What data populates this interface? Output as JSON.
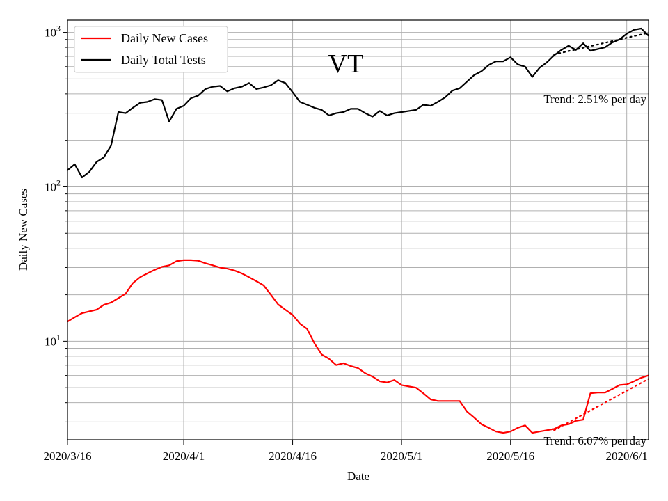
{
  "chart_data": {
    "type": "line",
    "title": "VT",
    "xlabel": "Date",
    "ylabel": "Daily New Cases",
    "yscale": "log",
    "ylim": [
      2.3,
      1200
    ],
    "grid": true,
    "legend_location": "upper-left",
    "x_start": "2020-03-16",
    "x_end": "2020-06-04",
    "x_tick_labels": [
      "2020/3/16",
      "2020/4/1",
      "2020/4/16",
      "2020/5/1",
      "2020/5/16",
      "2020/6/1"
    ],
    "x_tick_dates": [
      "2020-03-16",
      "2020-04-01",
      "2020-04-16",
      "2020-05-01",
      "2020-05-16",
      "2020-06-01"
    ],
    "y_tick_labels": [
      {
        "base": "10",
        "exp": "1",
        "value": 10
      },
      {
        "base": "10",
        "exp": "2",
        "value": 100
      },
      {
        "base": "10",
        "exp": "3",
        "value": 1000
      }
    ],
    "series": [
      {
        "name": "Daily New Cases",
        "color": "#ff0000",
        "dates": [
          "2020-03-16",
          "2020-03-17",
          "2020-03-18",
          "2020-03-19",
          "2020-03-20",
          "2020-03-21",
          "2020-03-22",
          "2020-03-23",
          "2020-03-24",
          "2020-03-25",
          "2020-03-26",
          "2020-03-27",
          "2020-03-28",
          "2020-03-29",
          "2020-03-30",
          "2020-03-31",
          "2020-04-01",
          "2020-04-02",
          "2020-04-03",
          "2020-04-04",
          "2020-04-05",
          "2020-04-06",
          "2020-04-07",
          "2020-04-08",
          "2020-04-09",
          "2020-04-10",
          "2020-04-11",
          "2020-04-12",
          "2020-04-13",
          "2020-04-14",
          "2020-04-15",
          "2020-04-16",
          "2020-04-17",
          "2020-04-18",
          "2020-04-19",
          "2020-04-20",
          "2020-04-21",
          "2020-04-22",
          "2020-04-23",
          "2020-04-24",
          "2020-04-25",
          "2020-04-26",
          "2020-04-27",
          "2020-04-28",
          "2020-04-29",
          "2020-04-30",
          "2020-05-01",
          "2020-05-02",
          "2020-05-03",
          "2020-05-04",
          "2020-05-05",
          "2020-05-06",
          "2020-05-07",
          "2020-05-08",
          "2020-05-09",
          "2020-05-10",
          "2020-05-11",
          "2020-05-12",
          "2020-05-13",
          "2020-05-14",
          "2020-05-15",
          "2020-05-16",
          "2020-05-17",
          "2020-05-18",
          "2020-05-19",
          "2020-05-20",
          "2020-05-21",
          "2020-05-22",
          "2020-05-23",
          "2020-05-24",
          "2020-05-25",
          "2020-05-26",
          "2020-05-27",
          "2020-05-28",
          "2020-05-29",
          "2020-05-30",
          "2020-05-31",
          "2020-06-01",
          "2020-06-02",
          "2020-06-03",
          "2020-06-04"
        ],
        "values": [
          13.4,
          14.3,
          15.2,
          15.6,
          16.0,
          17.2,
          17.8,
          19.0,
          20.3,
          23.8,
          26.0,
          27.5,
          29.0,
          30.3,
          31.0,
          33.0,
          33.5,
          33.5,
          33.2,
          32.0,
          31.0,
          30.0,
          29.5,
          28.7,
          27.5,
          26.0,
          24.5,
          23.0,
          20.0,
          17.3,
          16.0,
          14.8,
          13.0,
          12.0,
          9.7,
          8.2,
          7.7,
          7.0,
          7.2,
          6.9,
          6.7,
          6.2,
          5.9,
          5.5,
          5.4,
          5.6,
          5.2,
          5.1,
          5.0,
          4.6,
          4.2,
          4.1,
          4.1,
          4.1,
          4.1,
          3.5,
          3.2,
          2.9,
          2.75,
          2.6,
          2.55,
          2.6,
          2.75,
          2.85,
          2.55,
          2.6,
          2.65,
          2.7,
          2.85,
          2.9,
          3.05,
          3.1,
          4.6,
          4.65,
          4.65,
          4.9,
          5.2,
          5.25,
          5.5,
          5.8,
          6.0
        ]
      },
      {
        "name": "Daily Total Tests",
        "color": "#000000",
        "dates": [
          "2020-03-16",
          "2020-03-17",
          "2020-03-18",
          "2020-03-19",
          "2020-03-20",
          "2020-03-21",
          "2020-03-22",
          "2020-03-23",
          "2020-03-24",
          "2020-03-25",
          "2020-03-26",
          "2020-03-27",
          "2020-03-28",
          "2020-03-29",
          "2020-03-30",
          "2020-03-31",
          "2020-04-01",
          "2020-04-02",
          "2020-04-03",
          "2020-04-04",
          "2020-04-05",
          "2020-04-06",
          "2020-04-07",
          "2020-04-08",
          "2020-04-09",
          "2020-04-10",
          "2020-04-11",
          "2020-04-12",
          "2020-04-13",
          "2020-04-14",
          "2020-04-15",
          "2020-04-16",
          "2020-04-17",
          "2020-04-18",
          "2020-04-19",
          "2020-04-20",
          "2020-04-21",
          "2020-04-22",
          "2020-04-23",
          "2020-04-24",
          "2020-04-25",
          "2020-04-26",
          "2020-04-27",
          "2020-04-28",
          "2020-04-29",
          "2020-04-30",
          "2020-05-01",
          "2020-05-02",
          "2020-05-03",
          "2020-05-04",
          "2020-05-05",
          "2020-05-06",
          "2020-05-07",
          "2020-05-08",
          "2020-05-09",
          "2020-05-10",
          "2020-05-11",
          "2020-05-12",
          "2020-05-13",
          "2020-05-14",
          "2020-05-15",
          "2020-05-16",
          "2020-05-17",
          "2020-05-18",
          "2020-05-19",
          "2020-05-20",
          "2020-05-21",
          "2020-05-22",
          "2020-05-23",
          "2020-05-24",
          "2020-05-25",
          "2020-05-26",
          "2020-05-27",
          "2020-05-28",
          "2020-05-29",
          "2020-05-30",
          "2020-05-31",
          "2020-06-01",
          "2020-06-02",
          "2020-06-03",
          "2020-06-04"
        ],
        "values": [
          128,
          140,
          115,
          125,
          145,
          155,
          185,
          305,
          300,
          325,
          350,
          355,
          370,
          365,
          265,
          320,
          335,
          375,
          390,
          430,
          445,
          450,
          415,
          435,
          445,
          470,
          430,
          440,
          455,
          490,
          470,
          410,
          355,
          340,
          325,
          315,
          290,
          300,
          305,
          320,
          320,
          300,
          285,
          310,
          290,
          300,
          305,
          310,
          315,
          340,
          335,
          355,
          380,
          420,
          435,
          480,
          530,
          560,
          615,
          650,
          650,
          690,
          620,
          600,
          515,
          590,
          640,
          710,
          770,
          820,
          770,
          850,
          760,
          780,
          800,
          860,
          900,
          980,
          1040,
          1060,
          950
        ]
      }
    ],
    "trend_lines": [
      {
        "series": "Daily Total Tests",
        "label": "Trend: 2.51% per day",
        "color": "#000000",
        "start": "2020-05-22",
        "end": "2020-06-04",
        "start_value": 720,
        "rate": 0.0251
      },
      {
        "series": "Daily New Cases",
        "label": "Trend: 6.07% per day",
        "color": "#ff0000",
        "start": "2020-05-22",
        "end": "2020-06-04",
        "start_value": 2.65,
        "rate": 0.0607
      }
    ]
  }
}
